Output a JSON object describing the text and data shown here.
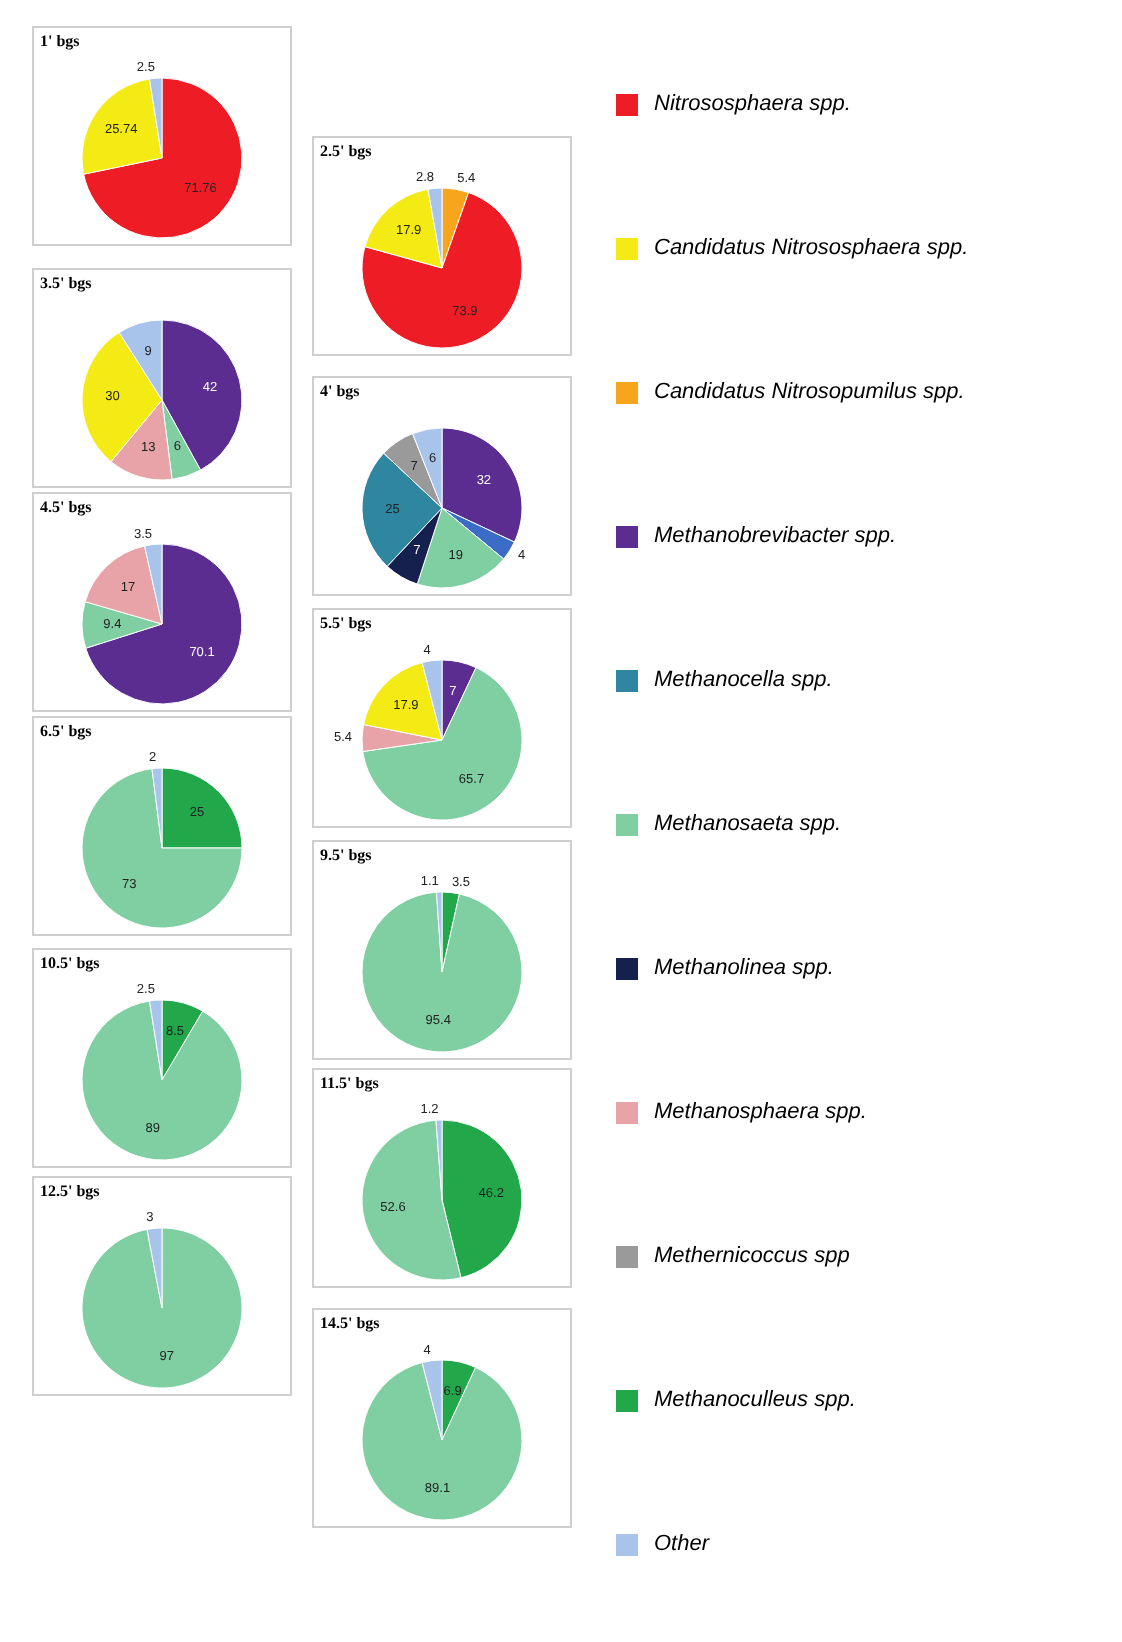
{
  "chart_data": [
    {
      "type": "pie",
      "title": "1' bgs",
      "categories": [
        null,
        null,
        null
      ],
      "values": [
        71.76,
        25.74,
        2.5
      ],
      "colors": [
        "#ee1c24",
        "#f5eb14",
        "#a9c4ea"
      ],
      "data_labels": true
    },
    {
      "type": "pie",
      "title": "2.5' bgs",
      "categories": [
        null,
        null,
        null,
        null
      ],
      "values": [
        5.4,
        73.9,
        17.9,
        2.8
      ],
      "colors": [
        "#f7a51c",
        "#ee1c24",
        "#f5eb14",
        "#a9c4ea"
      ],
      "data_labels": true
    },
    {
      "type": "pie",
      "title": "3.5' bgs",
      "categories": [
        null,
        null,
        null,
        null,
        null
      ],
      "values": [
        42,
        6,
        13,
        30,
        9
      ],
      "colors": [
        "#5b2d91",
        "#7fcfa3",
        "#e7a3a7",
        "#f5eb14",
        "#a9c4ea"
      ],
      "data_labels": true
    },
    {
      "type": "pie",
      "title": "4' bgs",
      "categories": [
        null,
        null,
        null,
        null,
        null,
        null,
        null
      ],
      "values": [
        32,
        4,
        19,
        7,
        25,
        7,
        6
      ],
      "colors": [
        "#5b2d91",
        "#3b6cc6",
        "#7fcfa3",
        "#15204e",
        "#2e86a0",
        "#9a9a9a",
        "#a9c4ea"
      ],
      "data_labels": true
    },
    {
      "type": "pie",
      "title": "4.5' bgs",
      "categories": [
        null,
        null,
        null,
        null
      ],
      "values": [
        70.1,
        9.4,
        17,
        3.5
      ],
      "colors": [
        "#5b2d91",
        "#7fcfa3",
        "#e7a3a7",
        "#a9c4ea"
      ],
      "data_labels": true
    },
    {
      "type": "pie",
      "title": "5.5' bgs",
      "categories": [
        null,
        null,
        null,
        null,
        null
      ],
      "values": [
        7,
        65.7,
        5.4,
        17.9,
        4
      ],
      "colors": [
        "#5b2d91",
        "#7fcfa3",
        "#e7a3a7",
        "#f5eb14",
        "#a9c4ea"
      ],
      "data_labels": true
    },
    {
      "type": "pie",
      "title": "6.5' bgs",
      "categories": [
        null,
        null,
        null
      ],
      "values": [
        25,
        73,
        2
      ],
      "colors": [
        "#22a84a",
        "#7fcfa3",
        "#a9c4ea"
      ],
      "data_labels": true
    },
    {
      "type": "pie",
      "title": "9.5' bgs",
      "categories": [
        null,
        null,
        null
      ],
      "values": [
        3.5,
        95.4,
        1.1
      ],
      "colors": [
        "#22a84a",
        "#7fcfa3",
        "#a9c4ea"
      ],
      "data_labels": true
    },
    {
      "type": "pie",
      "title": "10.5' bgs",
      "categories": [
        null,
        null,
        null
      ],
      "values": [
        8.5,
        89,
        2.5
      ],
      "colors": [
        "#22a84a",
        "#7fcfa3",
        "#a9c4ea"
      ],
      "data_labels": true
    },
    {
      "type": "pie",
      "title": "11.5' bgs",
      "categories": [
        null,
        null,
        null
      ],
      "values": [
        46.2,
        52.6,
        1.2
      ],
      "colors": [
        "#22a84a",
        "#7fcfa3",
        "#a9c4ea"
      ],
      "data_labels": true
    },
    {
      "type": "pie",
      "title": "12.5' bgs",
      "categories": [
        null,
        null
      ],
      "values": [
        97,
        3
      ],
      "colors": [
        "#7fcfa3",
        "#a9c4ea"
      ],
      "data_labels": true
    },
    {
      "type": "pie",
      "title": "14.5' bgs",
      "categories": [
        null,
        null,
        null
      ],
      "values": [
        6.9,
        89.1,
        4
      ],
      "colors": [
        "#22a84a",
        "#7fcfa3",
        "#a9c4ea"
      ],
      "data_labels": true
    },
    {
      "type": "other",
      "categories": [
        "Nitrososphaera spp.",
        "Candidatus Nitrososphaera spp.",
        "Candidatus Nitrosopumilus spp.",
        "Methanobrevibacter spp.",
        "Methanocella spp.",
        "Methanosaeta spp.",
        "Methanolinea spp.",
        "Methanosphaera spp.",
        "Methernicoccus spp",
        "Methanoculleus spp.",
        "Other"
      ],
      "colors": [
        "#ee1c24",
        "#f5eb14",
        "#f7a51c",
        "#5b2d91",
        "#2e86a0",
        "#7fcfa3",
        "#15204e",
        "#e7a3a7",
        "#9a9a9a",
        "#22a84a",
        "#a9c4ea"
      ]
    }
  ]
}
